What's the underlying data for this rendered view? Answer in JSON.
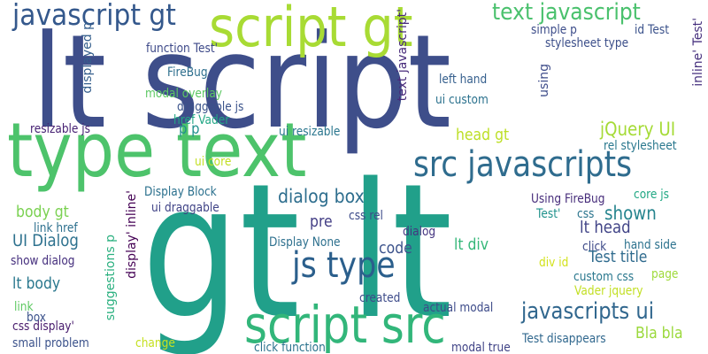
{
  "words": [
    {
      "text": "lt script",
      "color": "#3e4e8a"
    },
    {
      "text": "gt lt",
      "color": "#21a08a"
    },
    {
      "text": "type text",
      "color": "#4dc36b"
    },
    {
      "text": "script gt",
      "color": "#a8db34"
    },
    {
      "text": "script src",
      "color": "#32b67a"
    },
    {
      "text": "src javascripts",
      "color": "#2f6c8e"
    },
    {
      "text": "javascript gt",
      "color": "#34588c"
    },
    {
      "text": "text javascript",
      "color": "#4ac16d"
    },
    {
      "text": "js type",
      "color": "#2b5f8c"
    },
    {
      "text": "javascripts ui",
      "color": "#31678e"
    },
    {
      "text": "dialog box",
      "color": "#2e6e8e"
    },
    {
      "text": "jQuery UI",
      "color": "#a5db36"
    },
    {
      "text": "shown",
      "color": "#25848e"
    },
    {
      "text": "UI Dialog",
      "color": "#2d718e"
    },
    {
      "text": "lt head",
      "color": "#414487"
    },
    {
      "text": "Test title",
      "color": "#2f6b8e"
    },
    {
      "text": "lt body",
      "color": "#2a788e"
    },
    {
      "text": "body gt",
      "color": "#7ad151"
    },
    {
      "text": "head gt",
      "color": "#bddf26"
    },
    {
      "text": "lt div",
      "color": "#35b779"
    },
    {
      "text": "code",
      "color": "#3b528b"
    },
    {
      "text": "pre",
      "color": "#433e85"
    },
    {
      "text": "Bla bla",
      "color": "#9bd93c"
    },
    {
      "text": "p p",
      "color": "#21908d"
    },
    {
      "text": "function Test'",
      "color": "#3e4a89"
    },
    {
      "text": "FireBug",
      "color": "#2e6f8e"
    },
    {
      "text": "modal overlay",
      "color": "#5cc863"
    },
    {
      "text": "draggable js",
      "color": "#3a538b"
    },
    {
      "text": "href Vader",
      "color": "#22a785"
    },
    {
      "text": "resizable js",
      "color": "#482374"
    },
    {
      "text": "ui resizable",
      "color": "#2a768e"
    },
    {
      "text": "ui core",
      "color": "#c2df23"
    },
    {
      "text": "Display Block",
      "color": "#2c718e"
    },
    {
      "text": "ui draggable",
      "color": "#414487"
    },
    {
      "text": "link href",
      "color": "#2d708e"
    },
    {
      "text": "Display None",
      "color": "#2d708e"
    },
    {
      "text": "css rel",
      "color": "#3e4c8a"
    },
    {
      "text": "dialog",
      "color": "#453581"
    },
    {
      "text": "show dialog",
      "color": "#46307e"
    },
    {
      "text": "link",
      "color": "#5ec962"
    },
    {
      "text": "box",
      "color": "#3b528b"
    },
    {
      "text": "css display'",
      "color": "#481b6d"
    },
    {
      "text": "small problem",
      "color": "#3b528b"
    },
    {
      "text": "change",
      "color": "#c5e021"
    },
    {
      "text": "click function",
      "color": "#2c738e"
    },
    {
      "text": "created",
      "color": "#3e4c8a"
    },
    {
      "text": "actual modal",
      "color": "#3e4c8a"
    },
    {
      "text": "modal true",
      "color": "#414487"
    },
    {
      "text": "Test disappears",
      "color": "#31688e"
    },
    {
      "text": "left hand",
      "color": "#355f8d"
    },
    {
      "text": "ui custom",
      "color": "#2c728e"
    },
    {
      "text": "simple p",
      "color": "#3d4d8a"
    },
    {
      "text": "id Test",
      "color": "#3b528b"
    },
    {
      "text": "stylesheet type",
      "color": "#3c4f8a"
    },
    {
      "text": "rel stylesheet",
      "color": "#2a788e"
    },
    {
      "text": "Using FireBug",
      "color": "#472d7b"
    },
    {
      "text": "Test'",
      "color": "#20928c"
    },
    {
      "text": "css",
      "color": "#2b758e"
    },
    {
      "text": "core js",
      "color": "#22a884"
    },
    {
      "text": "click",
      "color": "#3e4a89"
    },
    {
      "text": "hand side",
      "color": "#2c728e"
    },
    {
      "text": "div id",
      "color": "#d2e21b"
    },
    {
      "text": "page",
      "color": "#9fda3a"
    },
    {
      "text": "custom css",
      "color": "#2a788e"
    },
    {
      "text": "Vader jquery",
      "color": "#c2df23"
    },
    {
      "text": "displayed p",
      "color": "#355f8d"
    },
    {
      "text": "suggestions p",
      "color": "#2ab07f"
    },
    {
      "text": "display' inline'",
      "color": "#440154"
    },
    {
      "text": "text javascript'",
      "color": "#472a7a"
    },
    {
      "text": "using",
      "color": "#3e4c8a"
    },
    {
      "text": "inline' Test'",
      "color": "#46307e"
    }
  ]
}
